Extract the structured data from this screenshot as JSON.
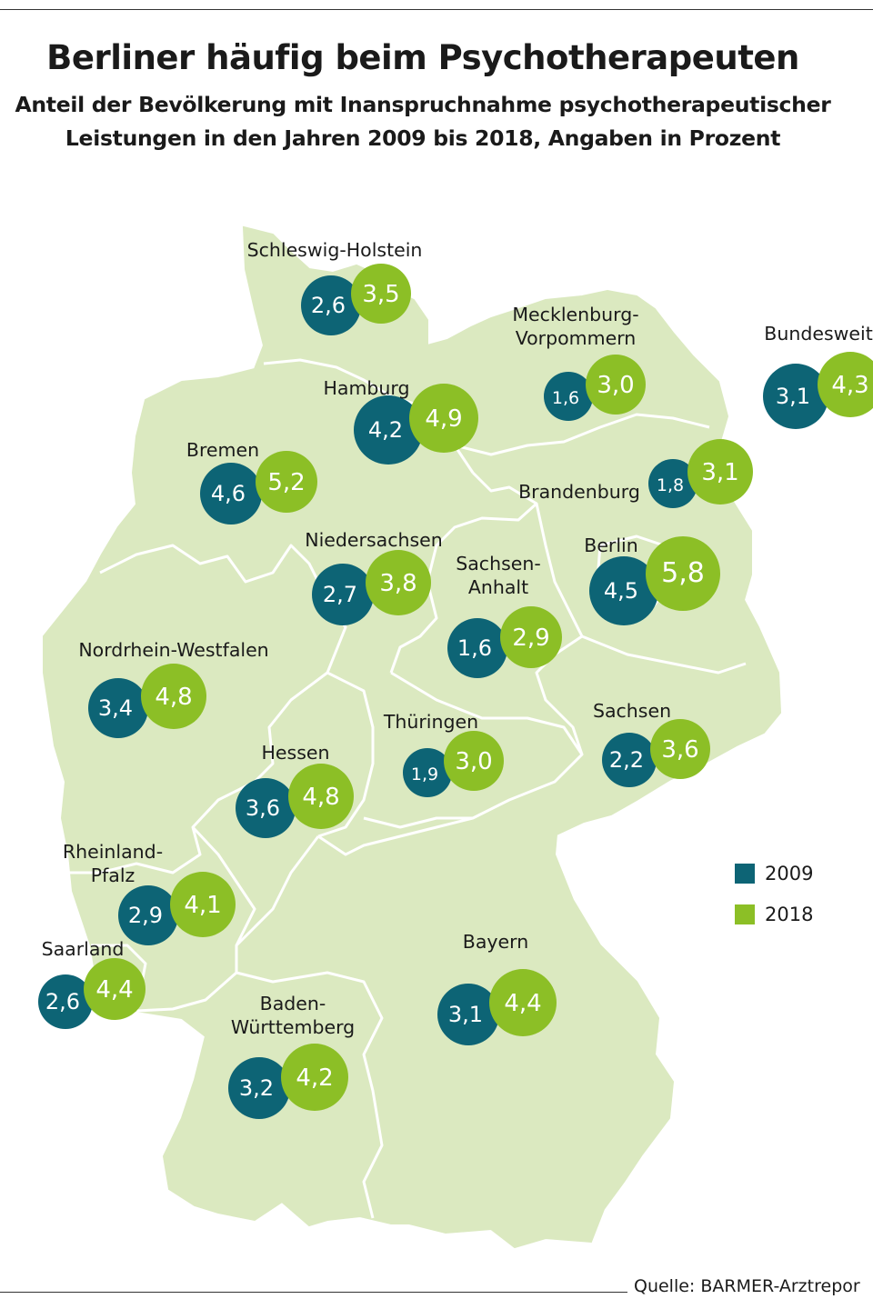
{
  "title": "Berliner häufig beim Psychotherapeuten",
  "subtitle_line1": "Anteil der Bevölkerung mit Inanspruchnahme psychotherapeutischer",
  "subtitle_line2": "Leistungen in den Jahren 2009 bis 2018, Angaben in Prozent",
  "source": "Quelle: BARMER-Arztrepor",
  "colors": {
    "y2009": "#0d6475",
    "y2018": "#8cbf26",
    "land": "#dbe9c0",
    "border": "#ffffff"
  },
  "legend": [
    {
      "label": "2009",
      "color": "#0d6475"
    },
    {
      "label": "2018",
      "color": "#8cbf26"
    }
  ],
  "regions": [
    {
      "name": "Schleswig-Holstein",
      "v2009": "2,6",
      "v2018": "3,5"
    },
    {
      "name": "Mecklenburg-\nVorpommern",
      "v2009": "1,6",
      "v2018": "3,0"
    },
    {
      "name": "Bundesweit",
      "v2009": "3,1",
      "v2018": "4,3"
    },
    {
      "name": "Hamburg",
      "v2009": "4,2",
      "v2018": "4,9"
    },
    {
      "name": "Bremen",
      "v2009": "4,6",
      "v2018": "5,2"
    },
    {
      "name": "Brandenburg",
      "v2009": "1,8",
      "v2018": "3,1"
    },
    {
      "name": "Niedersachsen",
      "v2009": "2,7",
      "v2018": "3,8"
    },
    {
      "name": "Sachsen-\nAnhalt",
      "v2009": "1,6",
      "v2018": "2,9"
    },
    {
      "name": "Berlin",
      "v2009": "4,5",
      "v2018": "5,8"
    },
    {
      "name": "Nordrhein-Westfalen",
      "v2009": "3,4",
      "v2018": "4,8"
    },
    {
      "name": "Thüringen",
      "v2009": "1,9",
      "v2018": "3,0"
    },
    {
      "name": "Sachsen",
      "v2009": "2,2",
      "v2018": "3,6"
    },
    {
      "name": "Hessen",
      "v2009": "3,6",
      "v2018": "4,8"
    },
    {
      "name": "Rheinland-\nPfalz",
      "v2009": "2,9",
      "v2018": "4,1"
    },
    {
      "name": "Saarland",
      "v2009": "2,6",
      "v2018": "4,4"
    },
    {
      "name": "Bayern",
      "v2009": "3,1",
      "v2018": "4,4"
    },
    {
      "name": "Baden-\nWürttemberg",
      "v2009": "3,2",
      "v2018": "4,2"
    }
  ]
}
